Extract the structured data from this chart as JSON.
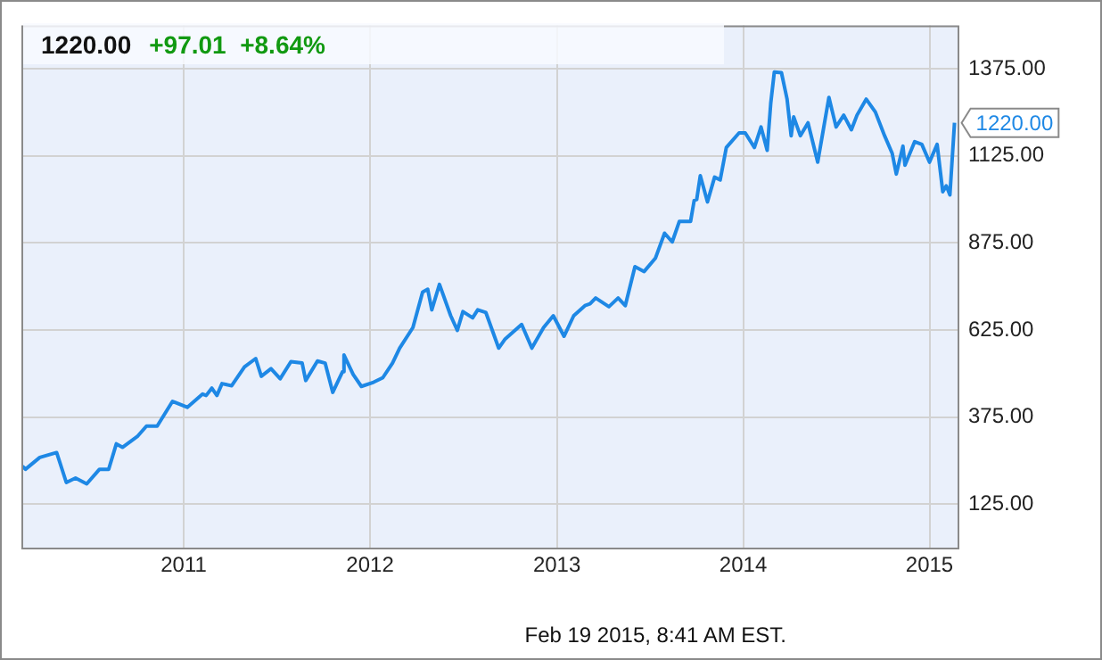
{
  "chart_data": {
    "type": "line",
    "title": "1220.00",
    "subtitle": "+97.01  +8.64%",
    "x": [
      "2010-02-19",
      "2010-02-25",
      "2010-03-25",
      "2010-04-27",
      "2010-05-02",
      "2010-05-16",
      "2010-06-03",
      "2010-06-25",
      "2010-07-20",
      "2010-08-07",
      "2010-08-22",
      "2010-09-03",
      "2010-10-02",
      "2010-10-20",
      "2010-11-10",
      "2010-12-10",
      "2010-12-15",
      "2011-01-08",
      "2011-02-07",
      "2011-02-14",
      "2011-02-25",
      "2011-03-07",
      "2011-03-17",
      "2011-04-05",
      "2011-04-30",
      "2011-05-22",
      "2011-06-02",
      "2011-06-21",
      "2011-07-09",
      "2011-07-30",
      "2011-08-21",
      "2011-08-28",
      "2011-09-20",
      "2011-10-05",
      "2011-10-20",
      "2011-11-08",
      "2011-11-11",
      "2011-11-29",
      "2011-12-15",
      "2012-01-08",
      "2012-01-26",
      "2012-02-14",
      "2012-02-28",
      "2012-03-25",
      "2012-04-13",
      "2012-04-23",
      "2012-05-01",
      "2012-05-16",
      "2012-06-07",
      "2012-06-20",
      "2012-07-01",
      "2012-07-20",
      "2012-07-30",
      "2012-08-15",
      "2012-09-09",
      "2012-09-21",
      "2012-10-24",
      "2012-11-13",
      "2012-12-06",
      "2012-12-25",
      "2013-01-15",
      "2013-02-03",
      "2013-02-25",
      "2013-03-07",
      "2013-03-18",
      "2013-04-13",
      "2013-05-01",
      "2013-05-15",
      "2013-06-03",
      "2013-06-21",
      "2013-07-13",
      "2013-07-31",
      "2013-08-15",
      "2013-08-29",
      "2013-09-20",
      "2013-09-27",
      "2013-10-02",
      "2013-10-09",
      "2013-10-23",
      "2013-11-06",
      "2013-11-17",
      "2013-11-29",
      "2013-12-24",
      "2014-01-05",
      "2014-01-23",
      "2014-02-05",
      "2014-02-17",
      "2014-02-24",
      "2014-03-03",
      "2014-03-17",
      "2014-03-28",
      "2014-04-05",
      "2014-04-10",
      "2014-04-23",
      "2014-05-08",
      "2014-05-27",
      "2014-06-18",
      "2014-07-02",
      "2014-07-17",
      "2014-08-01",
      "2014-08-12",
      "2014-08-30",
      "2014-09-17",
      "2014-10-05",
      "2014-10-20",
      "2014-10-28",
      "2014-11-10",
      "2014-11-14",
      "2014-12-03",
      "2014-12-17",
      "2015-01-01",
      "2015-01-16",
      "2015-01-27",
      "2015-02-03",
      "2015-02-10",
      "2015-02-19"
    ],
    "series": [
      {
        "color": "#1e88e5",
        "values": [
          234,
          225,
          259,
          273,
          251,
          187,
          200,
          183,
          225,
          225,
          298,
          288,
          319,
          349,
          349,
          420,
          417,
          403,
          441,
          437,
          458,
          437,
          471,
          465,
          519,
          543,
          492,
          514,
          485,
          534,
          530,
          480,
          536,
          530,
          446,
          505,
          553,
          497,
          463,
          475,
          488,
          530,
          573,
          632,
          734,
          742,
          683,
          756,
          666,
          624,
          678,
          660,
          683,
          675,
          573,
          598,
          641,
          573,
          632,
          666,
          607,
          666,
          695,
          700,
          717,
          692,
          717,
          695,
          807,
          793,
          831,
          903,
          878,
          937,
          937,
          997,
          1000,
          1068,
          993,
          1064,
          1056,
          1149,
          1191,
          1191,
          1149,
          1208,
          1141,
          1276,
          1366,
          1364,
          1288,
          1183,
          1237,
          1183,
          1220,
          1107,
          1293,
          1208,
          1242,
          1200,
          1242,
          1288,
          1251,
          1183,
          1132,
          1073,
          1153,
          1098,
          1166,
          1158,
          1107,
          1158,
          1022,
          1039,
          1013,
          1220
        ]
      }
    ],
    "xlim": [
      "2010-02-17",
      "2015-02-25"
    ],
    "xticks": [
      "2011",
      "2012",
      "2013",
      "2014",
      "2015"
    ],
    "ylim": [
      0,
      1500
    ],
    "yticks": [
      {
        "value": 125,
        "label": "125.00"
      },
      {
        "value": 375,
        "label": "375.00"
      },
      {
        "value": 625,
        "label": "625.00"
      },
      {
        "value": 875,
        "label": "875.00"
      },
      {
        "value": 1125,
        "label": "1125.00"
      },
      {
        "value": 1375,
        "label": "1375.00"
      }
    ],
    "grid": true,
    "marker": "none",
    "line_style": "solid",
    "annotations": [
      {
        "text": "1220.00",
        "x": "2015-02-19",
        "y": 1220
      },
      "Feb 19 2015, 8:41 AM EST."
    ]
  }
}
